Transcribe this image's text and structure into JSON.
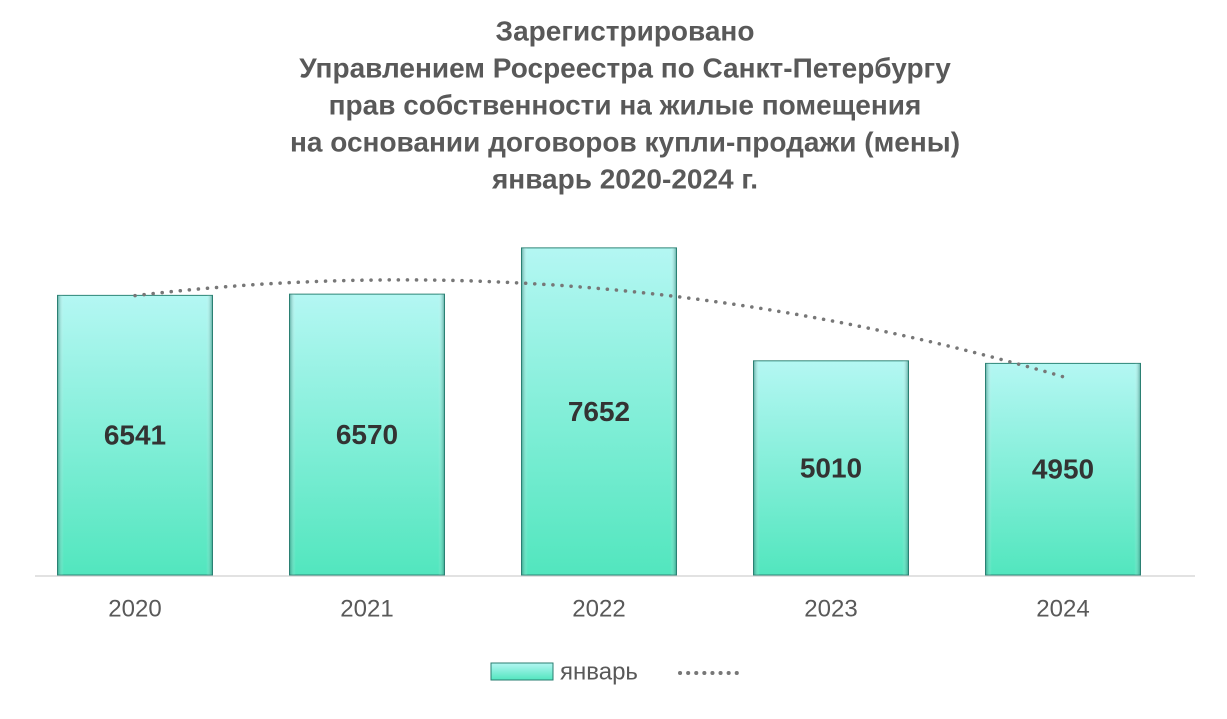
{
  "chart_data": {
    "type": "bar",
    "title": [
      "Зарегистрировано",
      "Управлением Росреестра по Санкт-Петербургу",
      "прав собственности на жилые помещения",
      "на основании договоров купли-продажи (мены)",
      "январь 2020-2024 г."
    ],
    "categories": [
      "2020",
      "2021",
      "2022",
      "2023",
      "2024"
    ],
    "series": [
      {
        "name": "январь",
        "color": "#5ee8c8",
        "values": [
          6541,
          6570,
          7652,
          5010,
          4950
        ]
      }
    ],
    "trendline": {
      "type": "polynomial",
      "order": 2,
      "color": "#777777"
    },
    "ylim": [
      0,
      8000
    ],
    "grid": false
  }
}
